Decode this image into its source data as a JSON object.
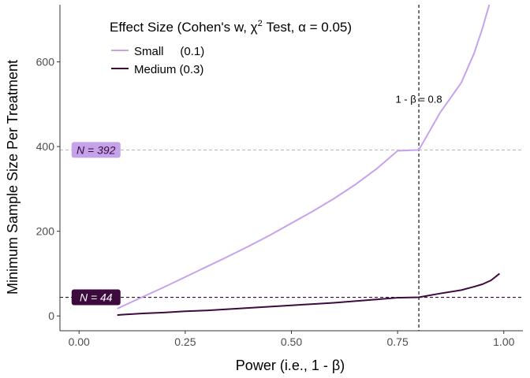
{
  "chart_data": {
    "type": "line",
    "title": "",
    "xlabel": "Power (i.e., 1 - β)",
    "ylabel": "Minimum Sample Size Per Treatment",
    "xlim": [
      -0.045,
      1.045
    ],
    "ylim": [
      -35,
      735
    ],
    "x_ticks": [
      0,
      0.25,
      0.5,
      0.75,
      1
    ],
    "x_tick_labels": [
      "0.00",
      "0.25",
      "0.50",
      "0.75",
      "1.00"
    ],
    "y_ticks": [
      0,
      200,
      400,
      600
    ],
    "y_tick_labels": [
      "0",
      "200",
      "400",
      "600"
    ],
    "grid": false,
    "legend": {
      "title_prefix": "Effect Size (Cohen's w, χ",
      "title_sup": "2",
      "title_suffix": " Test, α = 0.05)",
      "placement": "top-left",
      "entries": [
        "Small     (0.1)",
        "Medium (0.3)"
      ]
    },
    "series": [
      {
        "name": "Small     (0.1)",
        "color": "#c5a3ea",
        "x": [
          0.09,
          0.1,
          0.15,
          0.2,
          0.25,
          0.3,
          0.35,
          0.4,
          0.45,
          0.5,
          0.55,
          0.6,
          0.65,
          0.7,
          0.75,
          0.8,
          0.85,
          0.9,
          0.93,
          0.95,
          0.97,
          0.98
        ],
        "y": [
          17,
          22,
          45,
          68,
          92,
          116,
          140,
          165,
          191,
          219,
          247,
          277,
          310,
          347,
          390,
          392,
          480,
          551,
          620,
          680,
          750,
          800
        ]
      },
      {
        "name": "Medium (0.3)",
        "color": "#3d0a3d",
        "x": [
          0.09,
          0.1,
          0.15,
          0.2,
          0.25,
          0.3,
          0.35,
          0.4,
          0.45,
          0.5,
          0.55,
          0.6,
          0.65,
          0.7,
          0.75,
          0.8,
          0.85,
          0.9,
          0.93,
          0.95,
          0.97,
          0.99
        ],
        "y": [
          2,
          3,
          6,
          8,
          11,
          13,
          16,
          19,
          22,
          25,
          28,
          31,
          35,
          39,
          43,
          44,
          53,
          61,
          69,
          75,
          84,
          100
        ]
      }
    ],
    "reference_lines": [
      {
        "axis": "x",
        "value": 0.8,
        "color": "#000000",
        "style": "dashed"
      },
      {
        "axis": "y",
        "value": 392,
        "color": "#bbbbbb",
        "style": "dashed"
      },
      {
        "axis": "y",
        "value": 44,
        "color": "#3d0a3d",
        "style": "dashed"
      }
    ],
    "annotations": [
      {
        "text": "1 - β = 0.8",
        "x": 0.8,
        "y": 500
      },
      {
        "text": "N = 392",
        "x": 0.04,
        "y": 392,
        "bg": "#c5a3ea",
        "fg": "#3d0a3d"
      },
      {
        "text": "N = 44",
        "x": 0.04,
        "y": 44,
        "bg": "#3d0a3d",
        "fg": "#ffffff"
      }
    ]
  }
}
